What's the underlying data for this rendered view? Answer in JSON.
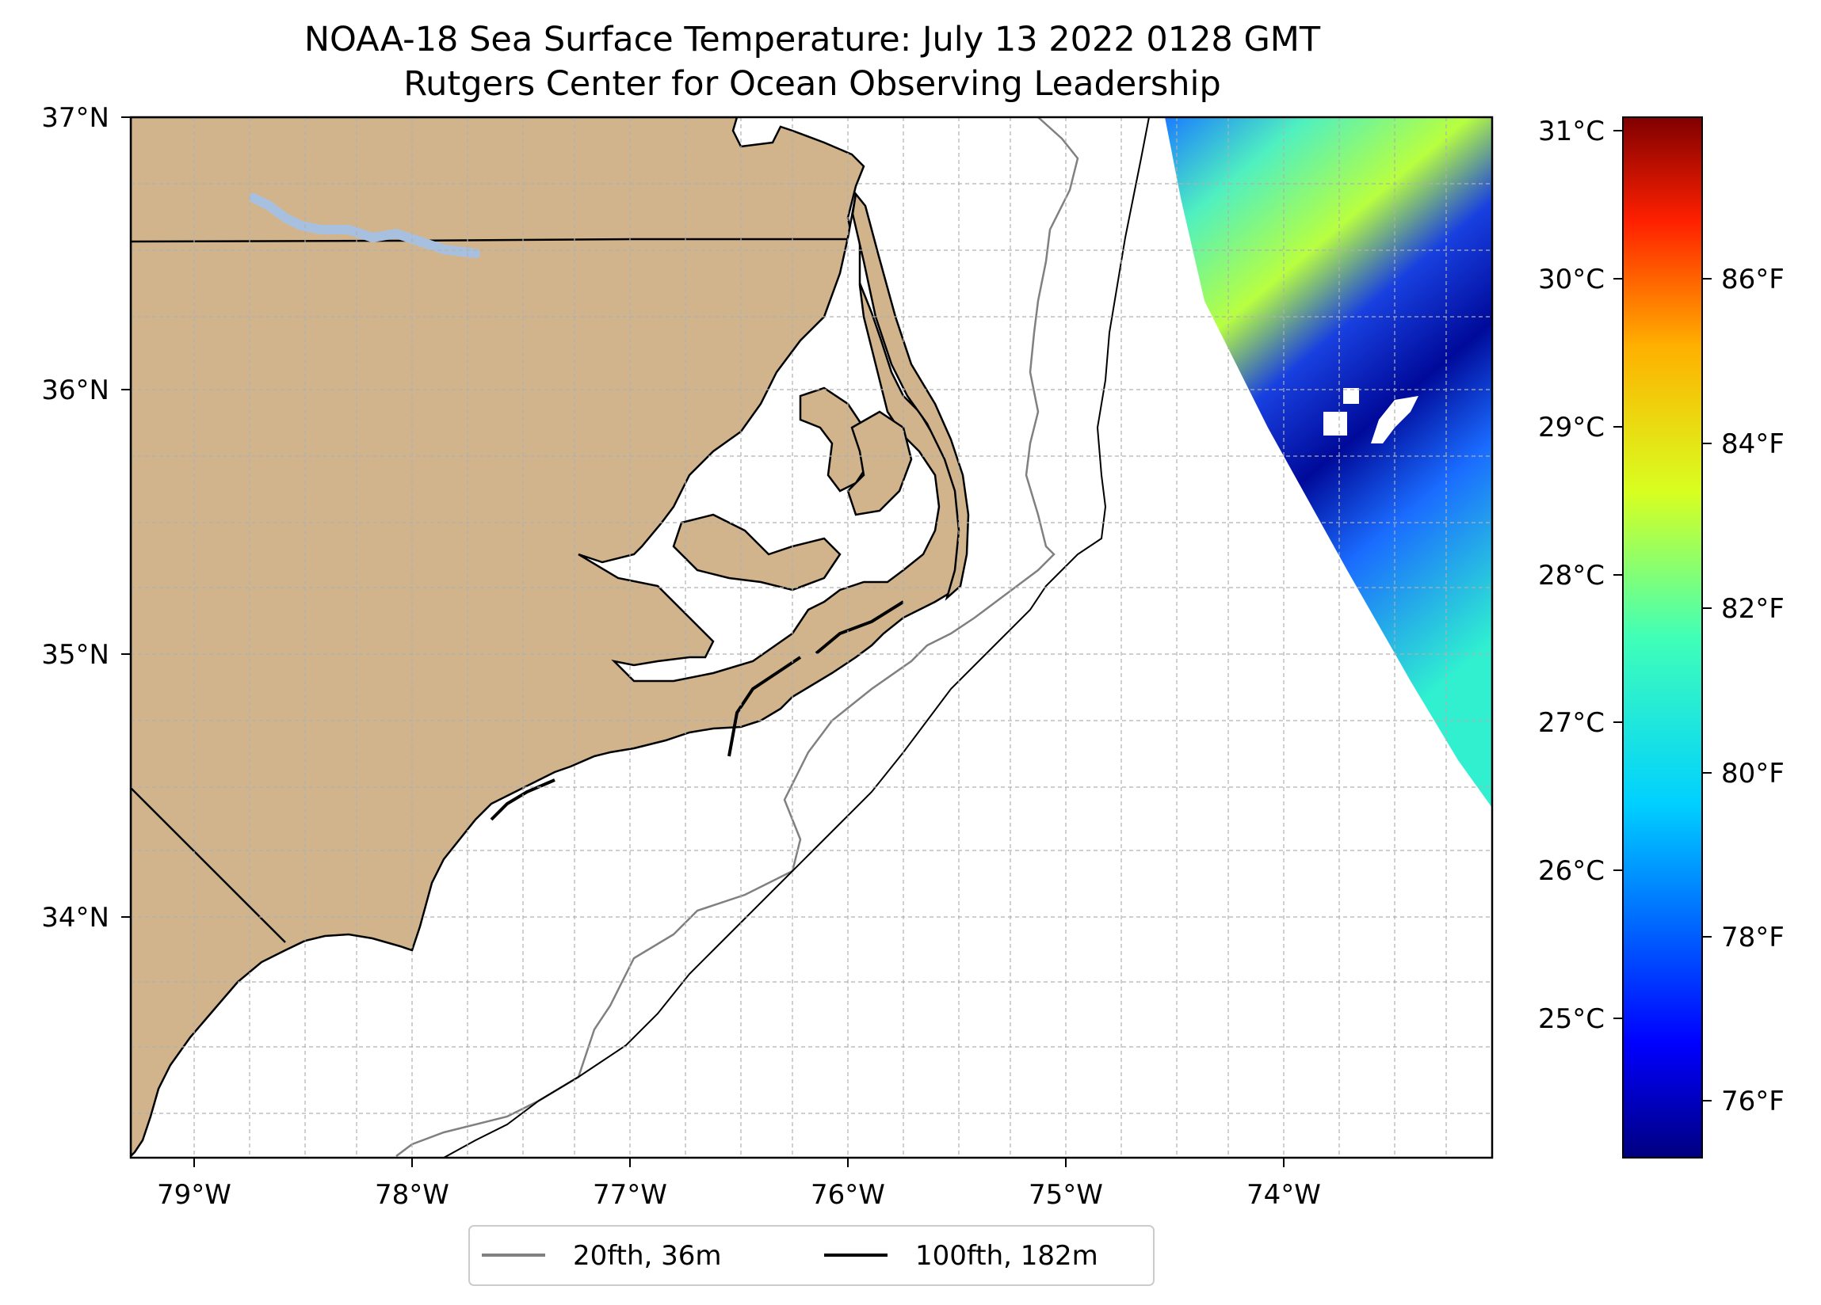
{
  "title": {
    "line1": "NOAA-18 Sea Surface Temperature: July 13 2022 0128 GMT",
    "line2": "Rutgers Center for Ocean Observing Leadership"
  },
  "map": {
    "lat_labels": [
      "37°N",
      "36°N",
      "35°N",
      "34°N"
    ],
    "lon_labels": [
      "79°W",
      "78°W",
      "77°W",
      "76°W",
      "75°W",
      "74°W"
    ],
    "colors": {
      "land": "#d2b48c",
      "lake": "#a8c0e0",
      "isobath_20fth": "#808080",
      "isobath_100fth": "#000000"
    }
  },
  "legend": {
    "items": [
      {
        "label": "20fth, 36m",
        "color": "#808080"
      },
      {
        "label": "100fth, 182m",
        "color": "#000000"
      }
    ]
  },
  "colorbar": {
    "celsius_labels": [
      "31°C",
      "30°C",
      "29°C",
      "28°C",
      "27°C",
      "26°C",
      "25°C"
    ],
    "fahrenheit_labels": [
      "86°F",
      "84°F",
      "82°F",
      "80°F",
      "78°F",
      "76°F"
    ],
    "colormap": "jet"
  }
}
